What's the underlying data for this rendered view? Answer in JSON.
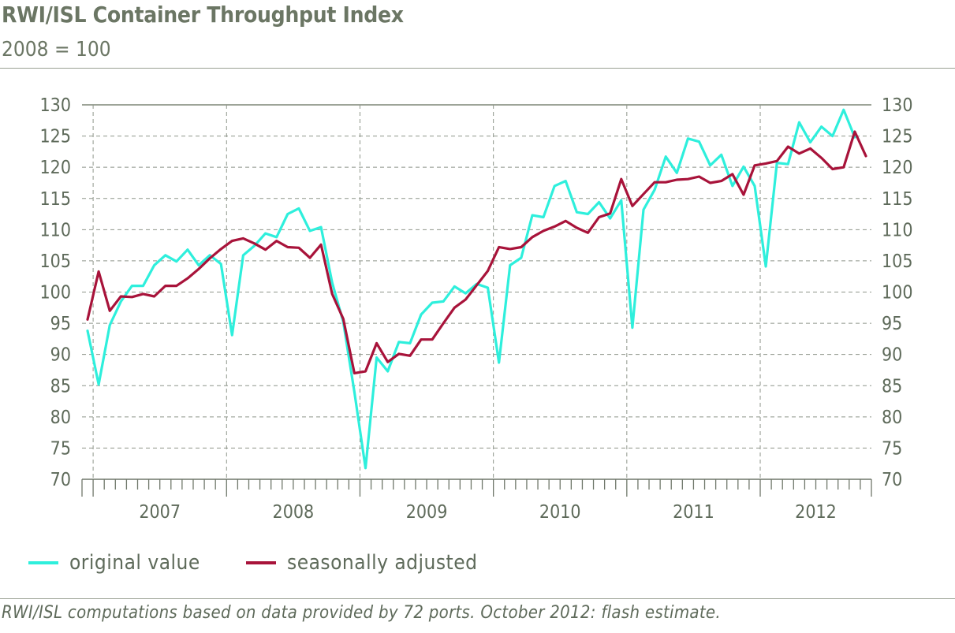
{
  "chart_data": {
    "type": "line",
    "title": "RWI/ISL Container Throughput Index",
    "subtitle": "2008 = 100",
    "ylim": [
      70,
      130
    ],
    "yticks": [
      70,
      75,
      80,
      85,
      90,
      95,
      100,
      105,
      110,
      115,
      120,
      125,
      130
    ],
    "year_labels": [
      "2007",
      "2008",
      "2009",
      "2010",
      "2011",
      "2012"
    ],
    "x_start": "2006-12",
    "x": [
      "2006-12",
      "2007-01",
      "2007-02",
      "2007-03",
      "2007-04",
      "2007-05",
      "2007-06",
      "2007-07",
      "2007-08",
      "2007-09",
      "2007-10",
      "2007-11",
      "2007-12",
      "2008-01",
      "2008-02",
      "2008-03",
      "2008-04",
      "2008-05",
      "2008-06",
      "2008-07",
      "2008-08",
      "2008-09",
      "2008-10",
      "2008-11",
      "2008-12",
      "2009-01",
      "2009-02",
      "2009-03",
      "2009-04",
      "2009-05",
      "2009-06",
      "2009-07",
      "2009-08",
      "2009-09",
      "2009-10",
      "2009-11",
      "2009-12",
      "2010-01",
      "2010-02",
      "2010-03",
      "2010-04",
      "2010-05",
      "2010-06",
      "2010-07",
      "2010-08",
      "2010-09",
      "2010-10",
      "2010-11",
      "2010-12",
      "2011-01",
      "2011-02",
      "2011-03",
      "2011-04",
      "2011-05",
      "2011-06",
      "2011-07",
      "2011-08",
      "2011-09",
      "2011-10",
      "2011-11",
      "2011-12",
      "2012-01",
      "2012-02",
      "2012-03",
      "2012-04",
      "2012-05",
      "2012-06",
      "2012-07",
      "2012-08",
      "2012-09",
      "2012-10"
    ],
    "series": [
      {
        "name": "original value",
        "color": "#2eefdc",
        "values": [
          93.8,
          85.2,
          94.7,
          98.5,
          101,
          101,
          104.3,
          105.9,
          104.9,
          106.8,
          104.3,
          105.9,
          104.5,
          93.1,
          105.9,
          107.4,
          109.4,
          108.8,
          112.5,
          113.4,
          109.8,
          110.4,
          101.5,
          95.2,
          84,
          71.8,
          89.5,
          87.3,
          92,
          91.8,
          96.4,
          98.3,
          98.5,
          100.9,
          99.8,
          101.3,
          100.7,
          88.7,
          104.3,
          105.5,
          112.3,
          112,
          117,
          117.8,
          112.8,
          112.5,
          114.4,
          111.8,
          114.7,
          94.3,
          113.2,
          116.4,
          121.7,
          119.1,
          124.6,
          124.1,
          120.3,
          122,
          117,
          120.1,
          117,
          104.1,
          120.7,
          120.5,
          127.2,
          124,
          126.5,
          125,
          129.2,
          124.8,
          null
        ]
      },
      {
        "name": "seasonally adjusted",
        "color": "#a8133a",
        "values": [
          95.6,
          103.3,
          97,
          99.3,
          99.2,
          99.7,
          99.3,
          101,
          101,
          102.2,
          103.7,
          105.4,
          106.9,
          108.2,
          108.6,
          107.8,
          106.8,
          108.2,
          107.2,
          107.1,
          105.5,
          107.6,
          99.7,
          95.7,
          87,
          87.3,
          91.8,
          88.8,
          90.1,
          89.8,
          92.4,
          92.4,
          95,
          97.5,
          98.8,
          101.1,
          103.4,
          107.2,
          106.9,
          107.2,
          108.8,
          109.8,
          110.5,
          111.4,
          110.3,
          109.5,
          112,
          112.6,
          118.1,
          113.8,
          115.7,
          117.6,
          117.6,
          118,
          118.1,
          118.5,
          117.5,
          117.8,
          118.9,
          115.6,
          120.3,
          120.6,
          121,
          123.3,
          122.2,
          123,
          121.5,
          119.7,
          120,
          125.7,
          121.8
        ]
      }
    ]
  },
  "legend": {
    "items": [
      {
        "label": "original value",
        "color": "#2eefdc"
      },
      {
        "label": "seasonally adjusted",
        "color": "#a8133a"
      }
    ]
  },
  "footnote": "RWI/ISL computations based on data provided by 72 ports. October 2012: flash estimate."
}
